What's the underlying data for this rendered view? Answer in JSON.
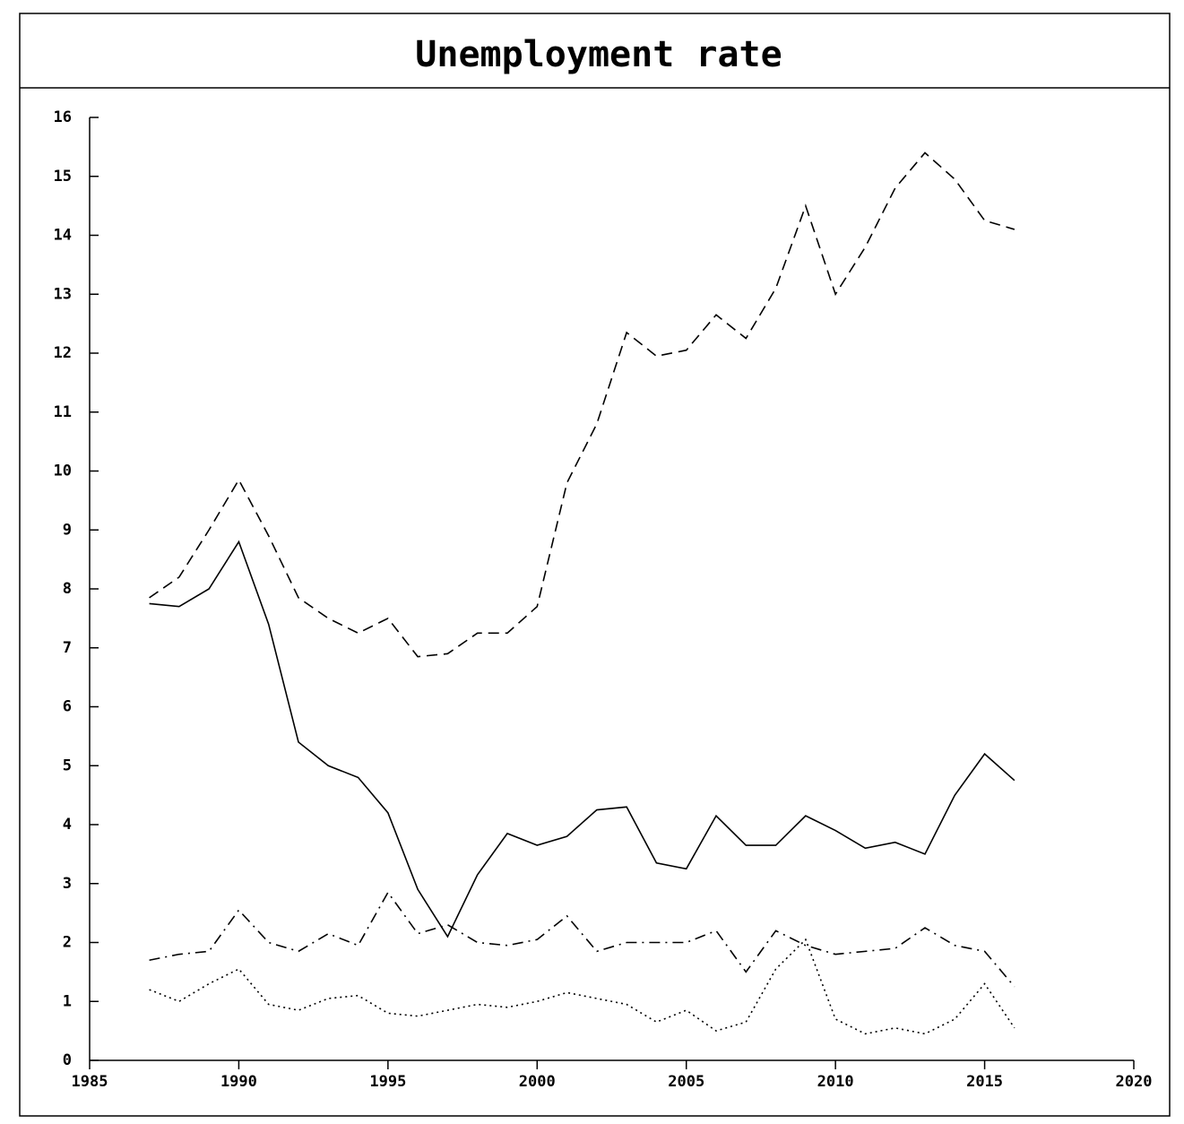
{
  "chart_data": {
    "type": "line",
    "title": "Unemployment rate",
    "x": [
      1987,
      1988,
      1989,
      1990,
      1991,
      1992,
      1993,
      1994,
      1995,
      1996,
      1997,
      1998,
      1999,
      2000,
      2001,
      2002,
      2003,
      2004,
      2005,
      2006,
      2007,
      2008,
      2009,
      2010,
      2011,
      2012,
      2013,
      2014,
      2015,
      2016
    ],
    "series": [
      {
        "color": "#000000",
        "dash": "solid",
        "values": [
          7.75,
          7.7,
          8.0,
          8.8,
          7.4,
          5.4,
          5.0,
          4.8,
          4.2,
          2.9,
          2.1,
          3.15,
          3.85,
          3.65,
          3.8,
          4.25,
          4.3,
          3.35,
          3.25,
          4.15,
          3.65,
          3.65,
          4.15,
          3.9,
          3.6,
          3.7,
          3.5,
          4.5,
          5.2,
          4.75
        ]
      },
      {
        "color": "#000000",
        "dash": "dashed",
        "values": [
          7.85,
          8.2,
          9.0,
          9.85,
          8.9,
          7.85,
          7.5,
          7.25,
          7.5,
          6.85,
          6.9,
          7.25,
          7.25,
          7.7,
          9.8,
          10.8,
          12.35,
          11.95,
          12.05,
          12.65,
          12.25,
          13.1,
          14.5,
          13.0,
          13.8,
          14.8,
          15.4,
          14.95,
          14.25,
          14.1
        ]
      },
      {
        "color": "#000000",
        "dash": "dashdot",
        "values": [
          1.7,
          1.8,
          1.85,
          2.55,
          2.0,
          1.85,
          2.15,
          1.95,
          2.85,
          2.15,
          2.3,
          2.0,
          1.95,
          2.05,
          2.45,
          1.85,
          2.0,
          2.0,
          2.0,
          2.2,
          1.5,
          2.2,
          1.95,
          1.8,
          1.85,
          1.9,
          2.25,
          1.95,
          1.85,
          1.25
        ]
      },
      {
        "color": "#000000",
        "dash": "dotted",
        "values": [
          1.2,
          1.0,
          1.3,
          1.55,
          0.95,
          0.85,
          1.05,
          1.1,
          0.8,
          0.75,
          0.85,
          0.95,
          0.9,
          1.0,
          1.15,
          1.05,
          0.95,
          0.65,
          0.85,
          0.5,
          0.65,
          1.55,
          2.05,
          0.7,
          0.45,
          0.55,
          0.45,
          0.7,
          1.3,
          0.55
        ]
      }
    ],
    "xlim": [
      1985,
      2020
    ],
    "xticks": [
      1985,
      1990,
      1995,
      2000,
      2005,
      2010,
      2015,
      2020
    ],
    "ylim": [
      0,
      16
    ],
    "yticks": [
      0,
      1,
      2,
      3,
      4,
      5,
      6,
      7,
      8,
      9,
      10,
      11,
      12,
      13,
      14,
      15,
      16
    ]
  }
}
